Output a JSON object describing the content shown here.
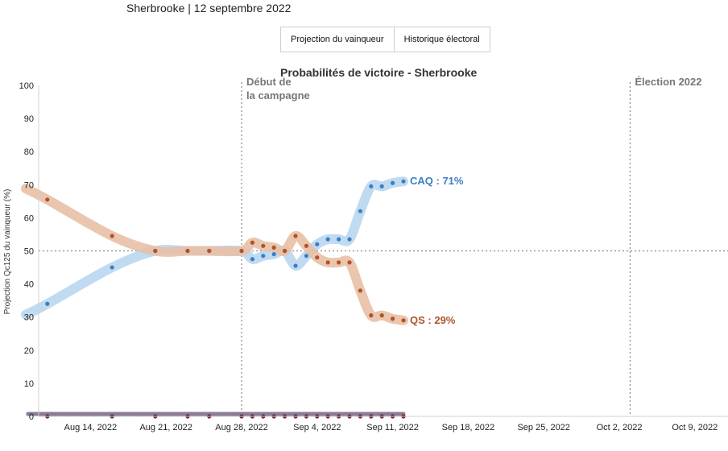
{
  "header": {
    "subtitle": "Sherbrooke | 12 septembre 2022",
    "tabs": [
      {
        "label": "Projection du vainqueur"
      },
      {
        "label": "Historique électoral"
      }
    ]
  },
  "chart_data": {
    "type": "line",
    "title": "Probabilités de victoire - Sherbrooke",
    "ylabel": "Projection Qc125 du vainqueur (%)",
    "ylim": [
      0,
      100
    ],
    "yticks": [
      "0",
      "10",
      "20",
      "30",
      "40",
      "50",
      "60",
      "70",
      "80",
      "90",
      "100"
    ],
    "xlim": [
      "2022-08-08",
      "2022-10-14"
    ],
    "xticks": [
      {
        "date": "2022-08-14",
        "label": "Aug 14, 2022"
      },
      {
        "date": "2022-08-21",
        "label": "Aug 21, 2022"
      },
      {
        "date": "2022-08-28",
        "label": "Aug 28, 2022"
      },
      {
        "date": "2022-09-04",
        "label": "Sep 4, 2022"
      },
      {
        "date": "2022-09-11",
        "label": "Sep 11, 2022"
      },
      {
        "date": "2022-09-18",
        "label": "Sep 18, 2022"
      },
      {
        "date": "2022-09-25",
        "label": "Sep 25, 2022"
      },
      {
        "date": "2022-10-02",
        "label": "Oct 2, 2022"
      },
      {
        "date": "2022-10-09",
        "label": "Oct 9, 2022"
      }
    ],
    "reference_line_y": 50,
    "annotations": [
      {
        "date": "2022-08-28",
        "text_lines": [
          "Début de",
          "la campagne"
        ]
      },
      {
        "date": "2022-10-03",
        "text_lines": [
          "Élection 2022"
        ]
      }
    ],
    "series": [
      {
        "name": "CAQ",
        "end_label": "CAQ : 71%",
        "color": "#3b7fc4",
        "band_color": "#b9d7f0",
        "points": [
          [
            "2022-08-10",
            34
          ],
          [
            "2022-08-16",
            45
          ],
          [
            "2022-08-20",
            50
          ],
          [
            "2022-08-23",
            50
          ],
          [
            "2022-08-25",
            50
          ],
          [
            "2022-08-28",
            50
          ],
          [
            "2022-08-29",
            47.5
          ],
          [
            "2022-08-30",
            48.5
          ],
          [
            "2022-08-31",
            49
          ],
          [
            "2022-09-01",
            50
          ],
          [
            "2022-09-02",
            45.5
          ],
          [
            "2022-09-03",
            48.5
          ],
          [
            "2022-09-04",
            52
          ],
          [
            "2022-09-05",
            53.5
          ],
          [
            "2022-09-06",
            53.5
          ],
          [
            "2022-09-07",
            53.5
          ],
          [
            "2022-09-08",
            62
          ],
          [
            "2022-09-09",
            69.5
          ],
          [
            "2022-09-10",
            69.5
          ],
          [
            "2022-09-11",
            70.5
          ],
          [
            "2022-09-12",
            71
          ]
        ]
      },
      {
        "name": "QS",
        "end_label": "QS : 29%",
        "color": "#b0532b",
        "band_color": "#e8c0a6",
        "points": [
          [
            "2022-08-10",
            65.5
          ],
          [
            "2022-08-16",
            54.5
          ],
          [
            "2022-08-20",
            50
          ],
          [
            "2022-08-23",
            50
          ],
          [
            "2022-08-25",
            50
          ],
          [
            "2022-08-28",
            50
          ],
          [
            "2022-08-29",
            52.5
          ],
          [
            "2022-08-30",
            51.5
          ],
          [
            "2022-08-31",
            51
          ],
          [
            "2022-09-01",
            50
          ],
          [
            "2022-09-02",
            54.5
          ],
          [
            "2022-09-03",
            51.5
          ],
          [
            "2022-09-04",
            48
          ],
          [
            "2022-09-05",
            46.5
          ],
          [
            "2022-09-06",
            46.5
          ],
          [
            "2022-09-07",
            46.5
          ],
          [
            "2022-09-08",
            38
          ],
          [
            "2022-09-09",
            30.5
          ],
          [
            "2022-09-10",
            30.5
          ],
          [
            "2022-09-11",
            29.5
          ],
          [
            "2022-09-12",
            29
          ]
        ]
      }
    ],
    "baseline_markers": {
      "color": "#6e1f2e",
      "bar_color": "#8a7d95",
      "dates": [
        "2022-08-10",
        "2022-08-16",
        "2022-08-20",
        "2022-08-23",
        "2022-08-25",
        "2022-08-28",
        "2022-08-29",
        "2022-08-30",
        "2022-08-31",
        "2022-09-01",
        "2022-09-02",
        "2022-09-03",
        "2022-09-04",
        "2022-09-05",
        "2022-09-06",
        "2022-09-07",
        "2022-09-08",
        "2022-09-09",
        "2022-09-10",
        "2022-09-11",
        "2022-09-12"
      ]
    }
  }
}
